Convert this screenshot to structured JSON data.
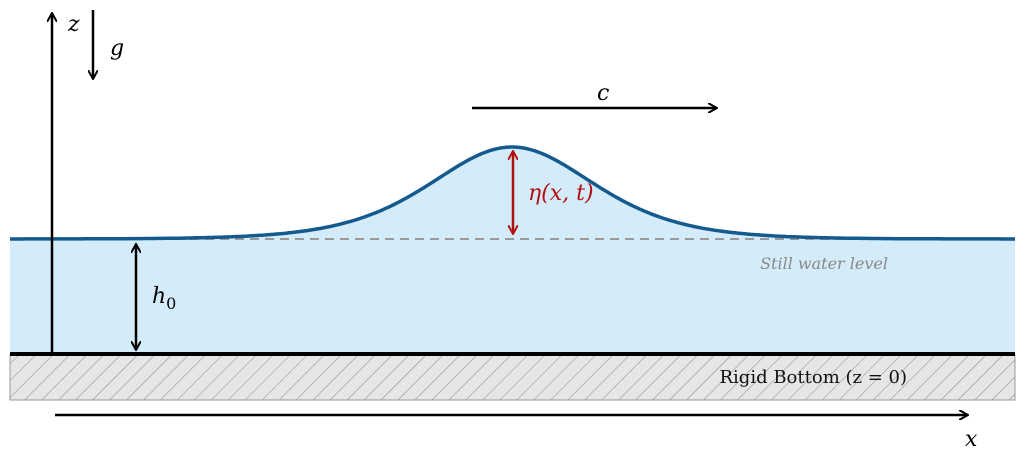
{
  "labels": {
    "vertical_axis": "z",
    "gravity": "g",
    "wave_speed": "c",
    "elevation": "η(x, t)",
    "depth": {
      "symbol": "h",
      "subscript": "0"
    },
    "still_water": "Still water level",
    "bottom": "Rigid Bottom (z = 0)",
    "horizontal_axis": "x"
  }
}
